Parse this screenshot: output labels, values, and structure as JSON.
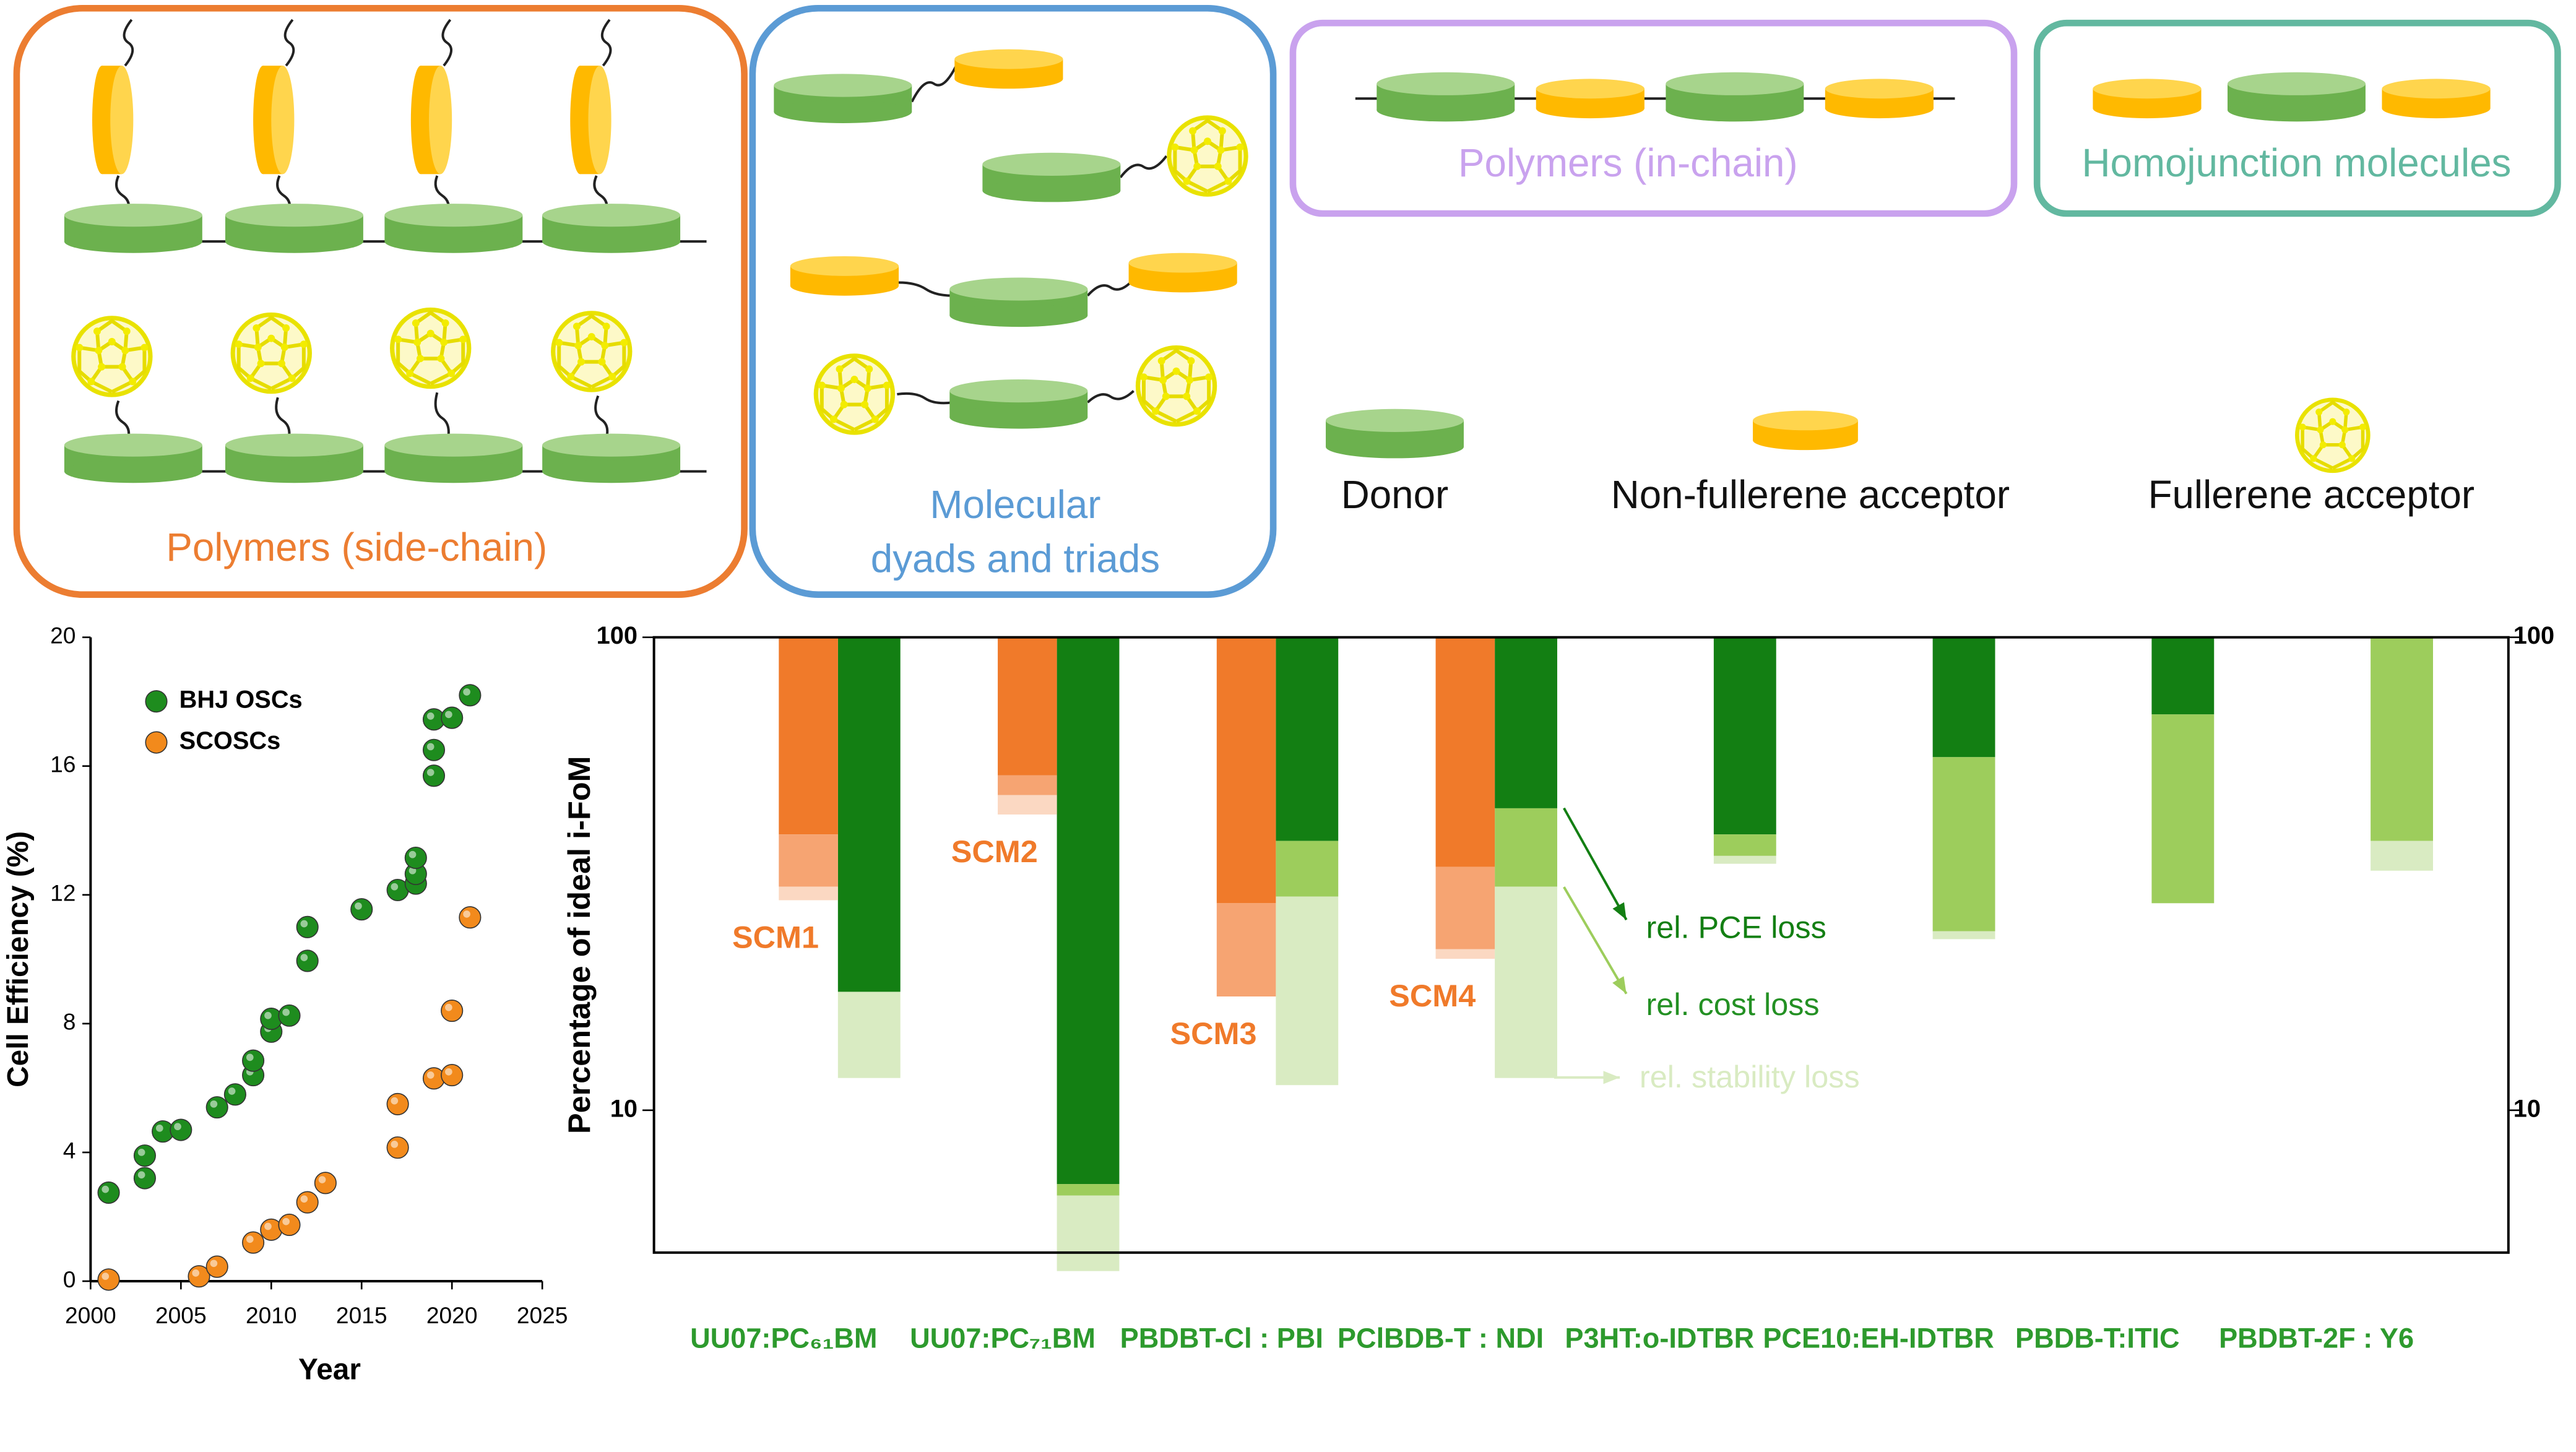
{
  "diagram": {
    "boxes": [
      {
        "label_lines": [
          "Polymers (side-chain)"
        ],
        "color": "#ec7d31"
      },
      {
        "label_lines": [
          "Molecular",
          "dyads and triads"
        ],
        "color": "#5b9bd5"
      },
      {
        "label_lines": [
          "Polymers (in-chain)"
        ],
        "color": "#c9a2ee"
      },
      {
        "label_lines": [
          "Homojunction molecules"
        ],
        "color": "#62b8a0"
      }
    ],
    "legend": [
      "Donor",
      "Non-fullerene acceptor",
      "Fullerene acceptor"
    ]
  },
  "chart_data": [
    {
      "type": "scatter",
      "xlabel": "Year",
      "ylabel": "Cell Efficiency (%)",
      "xlim": [
        2000,
        2025
      ],
      "xticks": [
        2000,
        2005,
        2010,
        2015,
        2020,
        2025
      ],
      "ylim": [
        0,
        20
      ],
      "yticks": [
        0,
        4,
        8,
        12,
        16,
        20
      ],
      "legend": "upper left",
      "series": [
        {
          "name": "BHJ OSCs",
          "color": "#1e8c1e",
          "x": [
            2001,
            2003,
            2003,
            2004,
            2005,
            2007,
            2008,
            2009,
            2009,
            2010,
            2010,
            2011,
            2012,
            2012,
            2015,
            2017,
            2018,
            2018,
            2018,
            2019,
            2019,
            2019,
            2020,
            2021
          ],
          "values": [
            2.75,
            3.9,
            3.2,
            4.65,
            4.7,
            5.4,
            5.8,
            6.4,
            6.85,
            7.75,
            8.15,
            8.25,
            9.95,
            11.0,
            11.55,
            12.15,
            12.35,
            12.65,
            13.15,
            15.7,
            16.5,
            17.45,
            17.5,
            18.2
          ]
        },
        {
          "name": "SCOSCs",
          "color": "#f28a1c",
          "x": [
            2001,
            2006,
            2007,
            2009,
            2010,
            2011,
            2012,
            2013,
            2017,
            2017,
            2019,
            2020,
            2020,
            2021
          ],
          "values": [
            0.05,
            0.15,
            0.45,
            1.2,
            1.6,
            1.75,
            2.45,
            3.05,
            4.15,
            5.5,
            6.3,
            6.4,
            8.4,
            11.3
          ]
        }
      ]
    },
    {
      "type": "bar",
      "log_scale": true,
      "ylabel": "Percentage of ideal i-FoM",
      "categories": [
        "UU07:PC₆₁BM",
        "UU07:PC₇₁BM",
        "PBDBT-Cl : PBI",
        "PClBDB-T : NDI",
        "P3HT:o-IDTBR",
        "PCE10:EH-IDTBR",
        "PBDB-T:ITIC",
        "PBDBT-2F : Y6"
      ],
      "ylim": [
        5,
        100
      ],
      "yticks": [
        10,
        100
      ],
      "y2lim": [
        5,
        100
      ],
      "y2ticks": [
        10,
        100
      ],
      "series": [
        {
          "name": "rel. PCE loss",
          "color": "#137f13",
          "values": [
            17.8,
            6.98,
            37.1,
            43.5,
            38.3,
            55.8,
            68.7,
            100
          ]
        },
        {
          "name": "rel. cost loss",
          "color": "#9dcd5c",
          "values": [
            17.8,
            6.6,
            28.3,
            29.7,
            34.5,
            23.9,
            27.4,
            37.1
          ]
        },
        {
          "name": "rel. stability loss",
          "color": "#d9ebc2",
          "values": [
            11.7,
            4.57,
            11.3,
            11.7,
            33.2,
            23.0,
            27.4,
            32.1
          ]
        }
      ],
      "scm_labels": [
        "SCM1",
        "SCM2",
        "SCM3",
        "SCM4",
        null,
        null,
        null,
        null
      ],
      "scm_series": [
        {
          "color": "#f07a2a",
          "values": [
            38.3,
            51.1,
            27.4,
            32.7,
            null,
            null,
            null,
            null
          ]
        },
        {
          "color": "#f6a472",
          "values": [
            29.7,
            46.4,
            17.4,
            21.9,
            null,
            null,
            null,
            null
          ]
        },
        {
          "color": "#fbd8c2",
          "values": [
            27.8,
            42.2,
            17.4,
            20.9,
            null,
            null,
            null,
            null
          ]
        }
      ]
    }
  ]
}
